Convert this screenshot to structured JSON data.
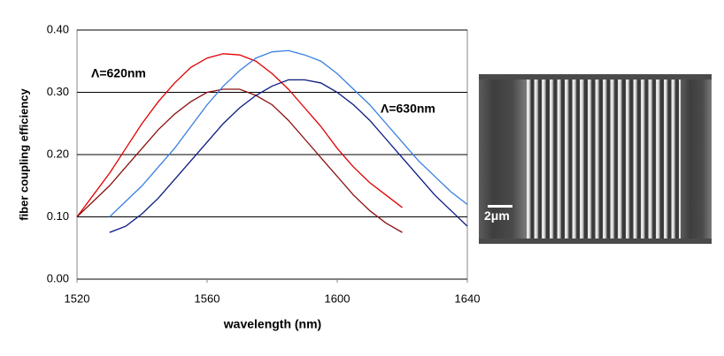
{
  "chart_data": {
    "type": "line",
    "xlabel": "wavelength (nm)",
    "ylabel": "fiber coupling efficiency",
    "xlim": [
      1520,
      1640
    ],
    "xticks": [
      1520,
      1560,
      1600,
      1640
    ],
    "ylim": [
      0,
      0.4
    ],
    "yticks": [
      {
        "value": 0,
        "label": "0.00"
      },
      {
        "value": 0.1,
        "label": "0.10"
      },
      {
        "value": 0.2,
        "label": "0.20"
      },
      {
        "value": 0.3,
        "label": "0.30"
      },
      {
        "value": 0.4,
        "label": "0.40"
      }
    ],
    "grid": true,
    "series": [
      {
        "color": "#e00000",
        "x": [
          1520,
          1525,
          1530,
          1535,
          1540,
          1545,
          1550,
          1555,
          1560,
          1565,
          1570,
          1575,
          1580,
          1585,
          1590,
          1595,
          1600,
          1605,
          1610,
          1615,
          1620
        ],
        "values": [
          0.1,
          0.135,
          0.17,
          0.21,
          0.25,
          0.285,
          0.315,
          0.34,
          0.355,
          0.362,
          0.36,
          0.35,
          0.33,
          0.305,
          0.275,
          0.245,
          0.21,
          0.18,
          0.155,
          0.135,
          0.115
        ]
      },
      {
        "color": "#8b1010",
        "x": [
          1520,
          1525,
          1530,
          1535,
          1540,
          1545,
          1550,
          1555,
          1560,
          1565,
          1570,
          1575,
          1580,
          1585,
          1590,
          1595,
          1600,
          1605,
          1610,
          1615,
          1620
        ],
        "values": [
          0.1,
          0.125,
          0.15,
          0.18,
          0.21,
          0.24,
          0.265,
          0.285,
          0.3,
          0.305,
          0.305,
          0.295,
          0.28,
          0.255,
          0.225,
          0.195,
          0.165,
          0.135,
          0.11,
          0.09,
          0.075
        ]
      },
      {
        "color": "#3a7fe0",
        "x": [
          1530,
          1535,
          1540,
          1545,
          1550,
          1555,
          1560,
          1565,
          1570,
          1575,
          1580,
          1585,
          1590,
          1595,
          1600,
          1605,
          1610,
          1615,
          1620,
          1625,
          1630,
          1635,
          1640
        ],
        "values": [
          0.1,
          0.125,
          0.15,
          0.18,
          0.21,
          0.245,
          0.28,
          0.31,
          0.335,
          0.355,
          0.365,
          0.367,
          0.36,
          0.35,
          0.33,
          0.305,
          0.28,
          0.25,
          0.22,
          0.19,
          0.165,
          0.14,
          0.12
        ]
      },
      {
        "color": "#0a1a80",
        "x": [
          1530,
          1535,
          1540,
          1545,
          1550,
          1555,
          1560,
          1565,
          1570,
          1575,
          1580,
          1585,
          1590,
          1595,
          1600,
          1605,
          1610,
          1615,
          1620,
          1625,
          1630,
          1635,
          1640
        ],
        "values": [
          0.075,
          0.085,
          0.105,
          0.13,
          0.16,
          0.19,
          0.22,
          0.25,
          0.275,
          0.295,
          0.31,
          0.32,
          0.32,
          0.315,
          0.3,
          0.28,
          0.255,
          0.225,
          0.195,
          0.165,
          0.135,
          0.11,
          0.085
        ]
      }
    ],
    "annotations": [
      {
        "text": "Λ=620nm",
        "color": "#e00000"
      },
      {
        "text": "Λ=630nm",
        "color": "#0a1a80"
      }
    ]
  },
  "image": {
    "scale_label": "2μm"
  }
}
